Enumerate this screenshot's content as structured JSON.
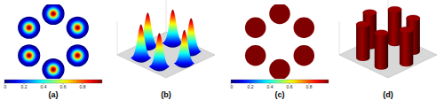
{
  "chart_data": [
    {
      "type": "contour",
      "title": "(a)",
      "marker": "gaussian",
      "x": [
        0,
        0.65,
        0.65,
        0,
        -0.65,
        -0.65
      ],
      "y": [
        0.75,
        0.375,
        -0.375,
        -0.75,
        -0.375,
        0.375
      ],
      "values": [
        1,
        1,
        1,
        1,
        1,
        1
      ],
      "sigma": 0.1,
      "xlim": [
        -1,
        1
      ],
      "ylim": [
        -1,
        1
      ],
      "tick_labels": false,
      "colorbar": {
        "range": [
          0,
          1
        ],
        "ticks": [
          0,
          0.2,
          0.4,
          0.6,
          0.8
        ]
      }
    },
    {
      "type": "surface",
      "title": "(b)",
      "marker": "gaussian",
      "x": [
        0,
        0.65,
        0.65,
        0,
        -0.65,
        -0.65
      ],
      "y": [
        0.75,
        0.375,
        -0.375,
        -0.75,
        -0.375,
        0.375
      ],
      "values": [
        1,
        1,
        1,
        1,
        1,
        1
      ],
      "sigma": 0.1,
      "xlim": [
        -1,
        1
      ],
      "ylim": [
        -1,
        1
      ],
      "zlim": [
        0,
        1
      ],
      "tick_labels": false
    },
    {
      "type": "contour",
      "title": "(c)",
      "marker": "disk",
      "x": [
        0,
        0.65,
        0.65,
        0,
        -0.65,
        -0.65
      ],
      "y": [
        0.75,
        0.375,
        -0.375,
        -0.75,
        -0.375,
        0.375
      ],
      "values": [
        1,
        1,
        1,
        1,
        1,
        1
      ],
      "radius": 0.28,
      "xlim": [
        -1,
        1
      ],
      "ylim": [
        -1,
        1
      ],
      "tick_labels": false,
      "colorbar": {
        "range": [
          0,
          1
        ],
        "ticks": [
          0,
          0.2,
          0.4,
          0.6,
          0.8
        ]
      }
    },
    {
      "type": "surface",
      "title": "(d)",
      "marker": "disk",
      "x": [
        0,
        0.65,
        0.65,
        0,
        -0.65,
        -0.65
      ],
      "y": [
        0.75,
        0.375,
        -0.375,
        -0.75,
        -0.375,
        0.375
      ],
      "values": [
        1,
        1,
        1,
        1,
        1,
        1
      ],
      "radius": 0.2,
      "xlim": [
        -1,
        1
      ],
      "ylim": [
        -1,
        1
      ],
      "zlim": [
        0,
        1
      ],
      "tick_labels": false
    }
  ]
}
